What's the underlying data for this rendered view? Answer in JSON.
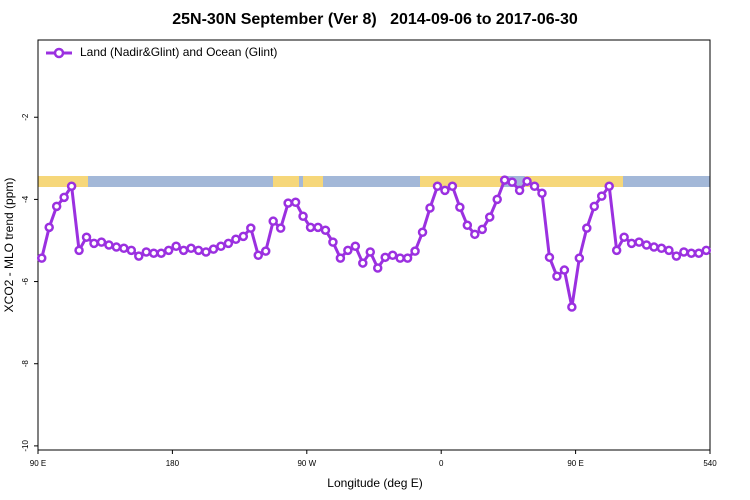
{
  "chart_data": {
    "type": "line",
    "title": "25N-30N September (Ver 8)   2014-09-06 to 2017-06-30",
    "xlabel": "Longitude (deg E)",
    "ylabel": "XCO2 - MLO trend (ppm)",
    "xlim": [
      90,
      540
    ],
    "xticks": [
      {
        "value": 90,
        "label": "90 E"
      },
      180,
      {
        "value": 270,
        "label": "90 W"
      },
      {
        "value": 360,
        "label": "0"
      },
      {
        "value": 450,
        "label": "90 E"
      },
      540
    ],
    "ylim": [
      -10.1,
      -0.12
    ],
    "yticks": [
      -10,
      -8,
      -6,
      -4,
      -2
    ],
    "legend": "top-left",
    "x": [
      92.5,
      97.5,
      102.5,
      107.5,
      112.5,
      117.5,
      122.5,
      127.5,
      132.5,
      137.5,
      142.5,
      147.5,
      152.5,
      157.5,
      162.5,
      167.5,
      172.5,
      177.5,
      182.5,
      187.5,
      192.5,
      197.5,
      202.5,
      207.5,
      212.5,
      217.5,
      222.5,
      227.5,
      232.5,
      237.5,
      242.5,
      247.5,
      252.5,
      257.5,
      262.5,
      267.5,
      272.5,
      277.5,
      282.5,
      287.5,
      292.5,
      297.5,
      302.5,
      307.5,
      312.5,
      317.5,
      322.5,
      327.5,
      332.5,
      337.5,
      342.5,
      347.5,
      352.5,
      357.5,
      362.5,
      367.5,
      372.5,
      377.5,
      382.5,
      387.5,
      392.5,
      397.5,
      402.5,
      407.5,
      412.5,
      417.5,
      422.5,
      427.5,
      432.5,
      437.5,
      442.5,
      447.5,
      452.5,
      457.5,
      462.5,
      467.5,
      472.5,
      477.5,
      482.5,
      487.5,
      492.5,
      497.5,
      502.5,
      507.5,
      512.5,
      517.5,
      522.5,
      527.5,
      532.5,
      537.5
    ],
    "series": [
      {
        "name": "Land (Nadir&Glint) and Ocean (Glint)",
        "color": "#9b30e0",
        "values": [
          -5.43,
          -4.68,
          -4.17,
          -3.95,
          -3.68,
          -5.24,
          -4.92,
          -5.07,
          -5.04,
          -5.11,
          -5.16,
          -5.19,
          -5.24,
          -5.38,
          -5.28,
          -5.31,
          -5.31,
          -5.24,
          -5.14,
          -5.24,
          -5.19,
          -5.24,
          -5.28,
          -5.21,
          -5.14,
          -5.07,
          -4.97,
          -4.9,
          -4.7,
          -5.36,
          -5.26,
          -4.53,
          -4.7,
          -4.09,
          -4.07,
          -4.41,
          -4.68,
          -4.68,
          -4.75,
          -5.04,
          -5.43,
          -5.24,
          -5.14,
          -5.55,
          -5.28,
          -5.67,
          -5.41,
          -5.36,
          -5.43,
          -5.43,
          -5.26,
          -4.8,
          -4.21,
          -3.68,
          -3.78,
          -3.68,
          -4.19,
          -4.63,
          -4.85,
          -4.73,
          -4.43,
          -4.0,
          -3.53,
          -3.58,
          -3.78,
          -3.56,
          -3.68,
          -3.85,
          -5.41,
          -5.87,
          -5.72,
          -6.62,
          -5.43,
          -4.7,
          -4.17,
          -3.92,
          -3.68,
          -5.24,
          -4.92,
          -5.07,
          -5.04,
          -5.11,
          -5.16,
          -5.19,
          -5.24,
          -5.38,
          -5.28,
          -5.31,
          -5.31,
          -5.24
        ]
      }
    ]
  }
}
